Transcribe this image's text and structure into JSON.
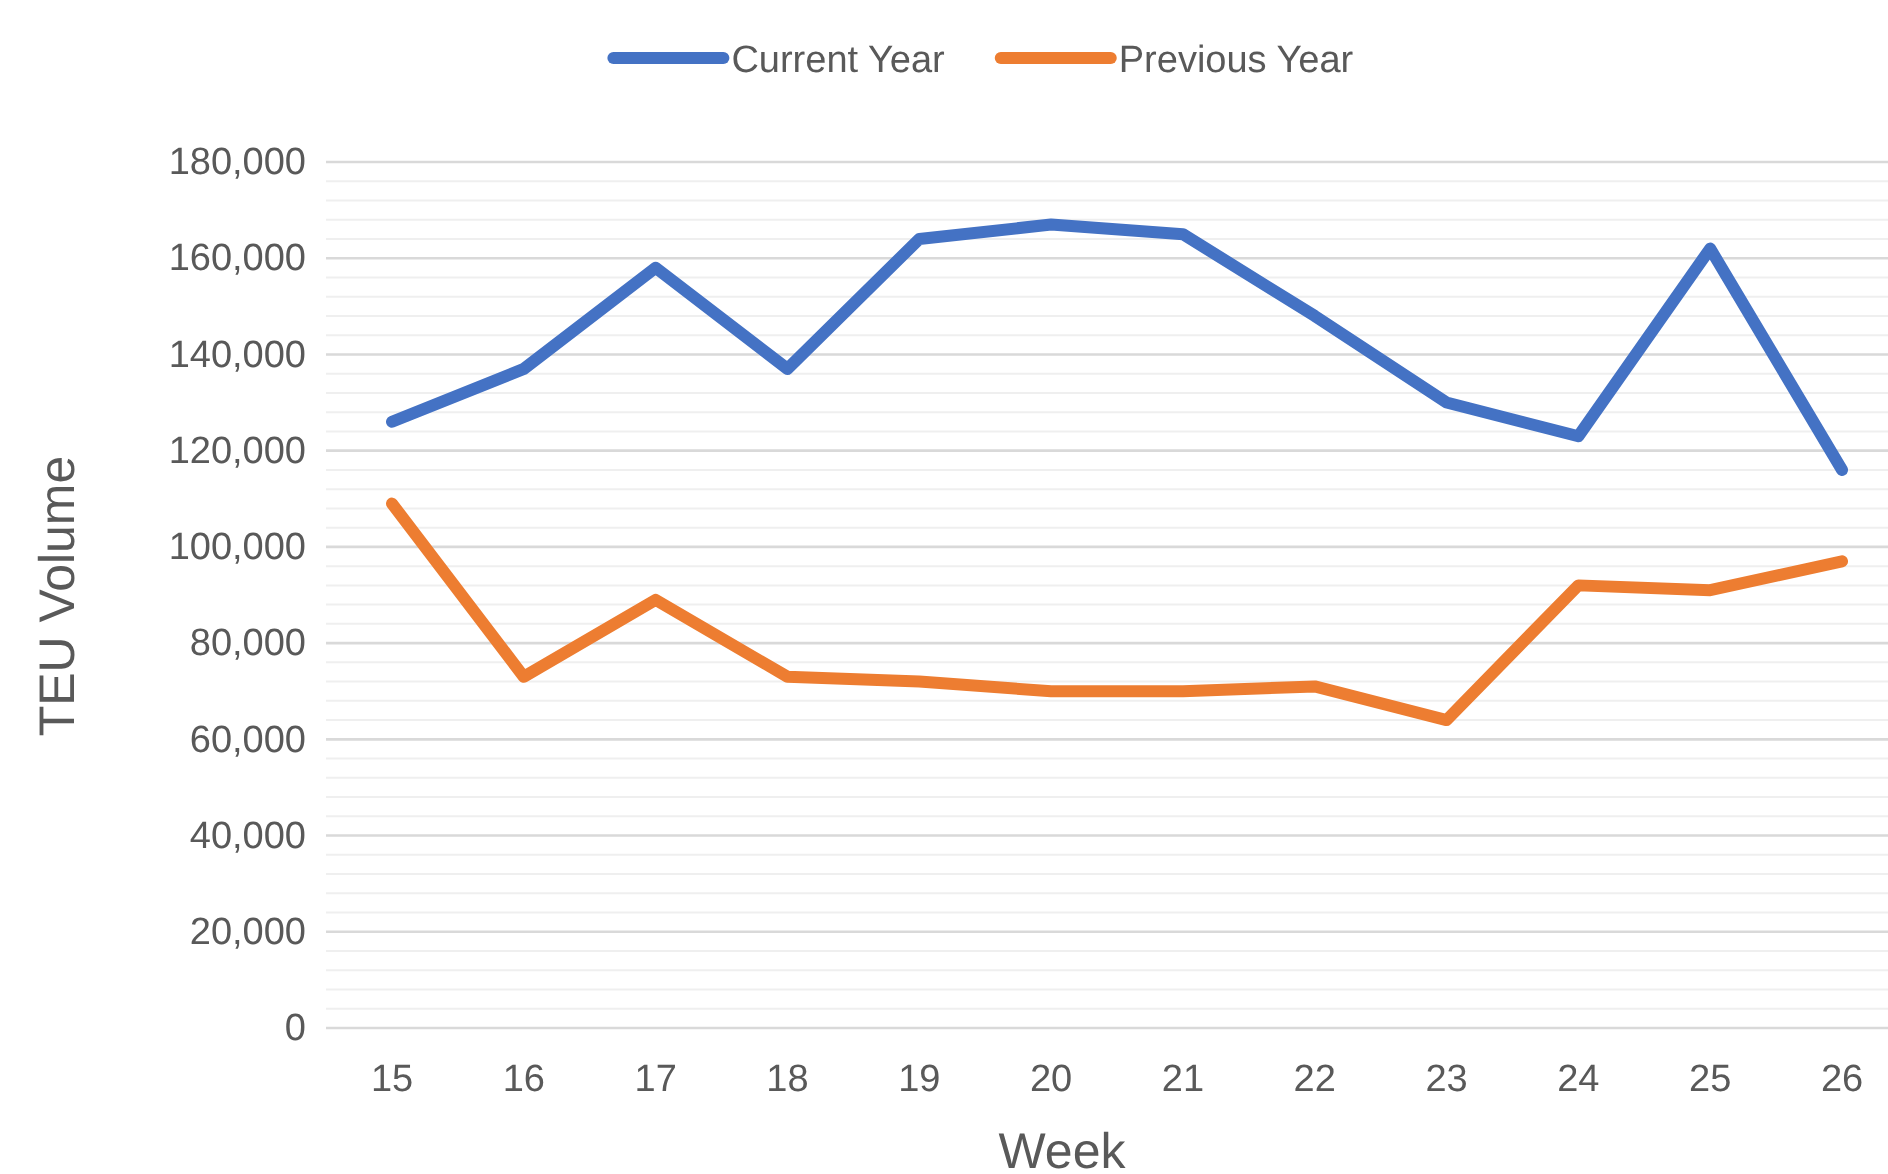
{
  "chart_data": {
    "type": "line",
    "xlabel": "Week",
    "ylabel": "TEU Volume",
    "categories": [
      "15",
      "16",
      "17",
      "18",
      "19",
      "20",
      "21",
      "22",
      "23",
      "24",
      "25",
      "26"
    ],
    "series": [
      {
        "name": "Current Year",
        "color": "#4472c4",
        "values": [
          126000,
          137000,
          158000,
          137000,
          164000,
          167000,
          165000,
          148000,
          130000,
          123000,
          162000,
          116000
        ]
      },
      {
        "name": "Previous Year",
        "color": "#ed7d31",
        "values": [
          109000,
          73000,
          89000,
          73000,
          72000,
          70000,
          70000,
          71000,
          64000,
          92000,
          91000,
          97000
        ]
      }
    ],
    "ylim": [
      0,
      180000
    ],
    "yticks": [
      {
        "value": 0,
        "label": "0"
      },
      {
        "value": 4000,
        "label": null
      },
      {
        "value": 8000,
        "label": null
      },
      {
        "value": 12000,
        "label": null
      },
      {
        "value": 16000,
        "label": null
      },
      {
        "value": 20000,
        "label": "20,000"
      },
      {
        "value": 24000,
        "label": null
      },
      {
        "value": 28000,
        "label": null
      },
      {
        "value": 32000,
        "label": null
      },
      {
        "value": 36000,
        "label": null
      },
      {
        "value": 40000,
        "label": "40,000"
      },
      {
        "value": 44000,
        "label": null
      },
      {
        "value": 48000,
        "label": null
      },
      {
        "value": 52000,
        "label": null
      },
      {
        "value": 56000,
        "label": null
      },
      {
        "value": 60000,
        "label": "60,000"
      },
      {
        "value": 64000,
        "label": null
      },
      {
        "value": 68000,
        "label": null
      },
      {
        "value": 72000,
        "label": null
      },
      {
        "value": 76000,
        "label": null
      },
      {
        "value": 80000,
        "label": "80,000"
      },
      {
        "value": 84000,
        "label": null
      },
      {
        "value": 88000,
        "label": null
      },
      {
        "value": 92000,
        "label": null
      },
      {
        "value": 96000,
        "label": null
      },
      {
        "value": 100000,
        "label": "100,000"
      },
      {
        "value": 104000,
        "label": null
      },
      {
        "value": 108000,
        "label": null
      },
      {
        "value": 112000,
        "label": null
      },
      {
        "value": 116000,
        "label": null
      },
      {
        "value": 120000,
        "label": "120,000"
      },
      {
        "value": 124000,
        "label": null
      },
      {
        "value": 128000,
        "label": null
      },
      {
        "value": 132000,
        "label": null
      },
      {
        "value": 136000,
        "label": null
      },
      {
        "value": 140000,
        "label": "140,000"
      },
      {
        "value": 144000,
        "label": null
      },
      {
        "value": 148000,
        "label": null
      },
      {
        "value": 152000,
        "label": null
      },
      {
        "value": 156000,
        "label": null
      },
      {
        "value": 160000,
        "label": "160,000"
      },
      {
        "value": 164000,
        "label": null
      },
      {
        "value": 168000,
        "label": null
      },
      {
        "value": 172000,
        "label": null
      },
      {
        "value": 176000,
        "label": null
      },
      {
        "value": 180000,
        "label": "180,000"
      }
    ],
    "grid": "y",
    "legend": "top",
    "marker": "none",
    "line_style": "solid"
  }
}
